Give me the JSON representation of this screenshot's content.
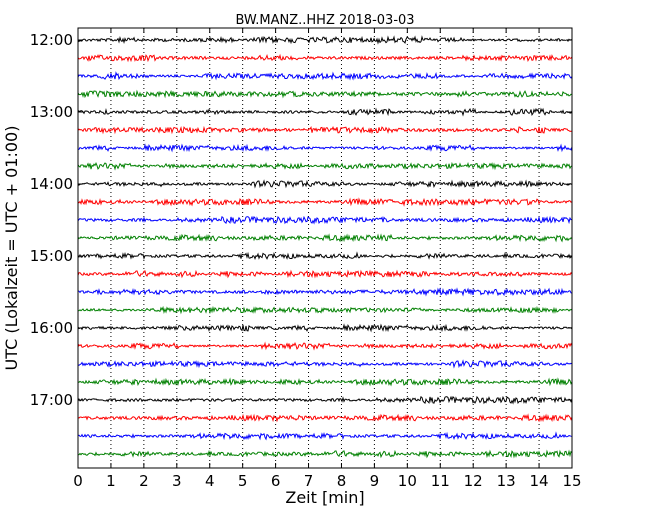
{
  "chart_data": {
    "type": "line",
    "subtype": "helicorder",
    "title": "BW.MANZ..HHZ 2018-03-03",
    "xlabel": "Zeit  [min]",
    "ylabel": "UTC (Lokalzeit = UTC + 01:00)",
    "xlim": [
      0,
      15
    ],
    "x_ticks": [
      "0",
      "1",
      "2",
      "3",
      "4",
      "5",
      "6",
      "7",
      "8",
      "9",
      "10",
      "11",
      "12",
      "13",
      "14",
      "15"
    ],
    "y_ticks": [
      "12:00",
      "13:00",
      "14:00",
      "15:00",
      "16:00",
      "17:00"
    ],
    "grid": "vertical-dotted",
    "trace_start": "12:00",
    "trace_interval_minutes": 15,
    "trace_count": 24,
    "trace_colors": [
      "#000000",
      "#ff0000",
      "#0000ff",
      "#008000"
    ]
  }
}
